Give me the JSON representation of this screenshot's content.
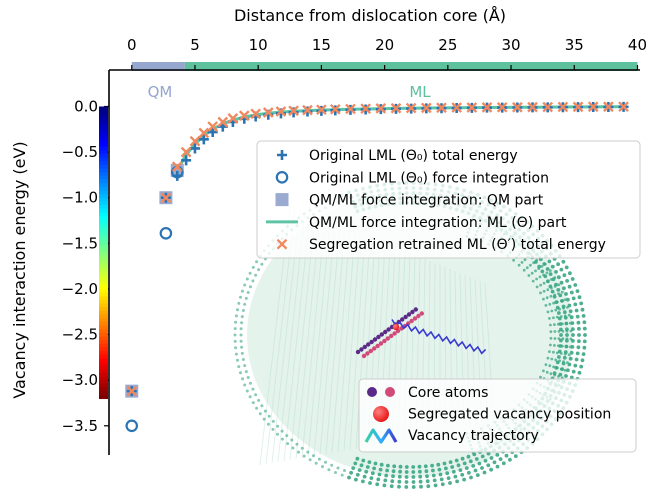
{
  "chart_data": {
    "type": "scatter",
    "title": "",
    "xlabel": "Distance from dislocation core (Å)",
    "ylabel": "Vacancy interaction energy (eV)",
    "xlim": [
      -1.8,
      40.2
    ],
    "ylim": [
      -3.82,
      0.4
    ],
    "x_ticks": [
      0,
      5,
      10,
      15,
      20,
      25,
      30,
      35,
      40
    ],
    "y_ticks": [
      0.0,
      -0.5,
      -1.0,
      -1.5,
      -2.0,
      -2.5,
      -3.0,
      -3.5
    ],
    "x_tick_labels": [
      "0",
      "5",
      "10",
      "15",
      "20",
      "25",
      "30",
      "35",
      "40"
    ],
    "y_tick_labels": [
      "0.0",
      "−0.5",
      "−1.0",
      "−1.5",
      "−2.0",
      "−2.5",
      "−3.0",
      "−3.5"
    ],
    "x_axis_position": "top",
    "grid": false,
    "legend_position": "right",
    "regions": [
      {
        "label": "QM",
        "x_range": [
          0,
          4.2
        ],
        "color": "#95a6cf"
      },
      {
        "label": "ML",
        "x_range": [
          4.2,
          40
        ],
        "color": "#5ec19d"
      }
    ],
    "colors": {
      "lml_total": "#2b74b4",
      "lml_force": "#2b74b4",
      "qm_part": "#9aaad1",
      "ml_part": "#5ec4a4",
      "retrained": "#f0895f"
    },
    "series": [
      {
        "name": "Original LML (Θ₀) total energy",
        "marker": "plus",
        "points": [
          [
            0,
            -3.12
          ],
          [
            2.7,
            -1.0
          ],
          [
            3.6,
            -0.76
          ],
          [
            4.3,
            -0.59
          ],
          [
            5.0,
            -0.46
          ],
          [
            5.7,
            -0.36
          ],
          [
            6.4,
            -0.28
          ],
          [
            7.2,
            -0.22
          ],
          [
            8.0,
            -0.17
          ],
          [
            8.9,
            -0.135
          ],
          [
            9.8,
            -0.11
          ],
          [
            10.8,
            -0.09
          ],
          [
            11.8,
            -0.075
          ],
          [
            12.8,
            -0.064
          ],
          [
            13.9,
            -0.055
          ],
          [
            15.0,
            -0.048
          ],
          [
            16.1,
            -0.042
          ],
          [
            17.3,
            -0.037
          ],
          [
            18.5,
            -0.033
          ],
          [
            19.7,
            -0.029
          ],
          [
            20.9,
            -0.026
          ],
          [
            22.1,
            -0.023
          ],
          [
            23.3,
            -0.021
          ],
          [
            24.5,
            -0.019
          ],
          [
            25.7,
            -0.017
          ],
          [
            26.9,
            -0.015
          ],
          [
            28.1,
            -0.013
          ],
          [
            29.3,
            -0.012
          ],
          [
            30.5,
            -0.011
          ],
          [
            31.7,
            -0.01
          ],
          [
            32.9,
            -0.009
          ],
          [
            34.1,
            -0.008
          ],
          [
            35.3,
            -0.007
          ],
          [
            36.5,
            -0.006
          ],
          [
            37.7,
            -0.005
          ],
          [
            38.9,
            -0.004
          ]
        ]
      },
      {
        "name": "Original LML (Θ₀) force integration",
        "marker": "circle",
        "points": [
          [
            0,
            -3.5
          ],
          [
            2.7,
            -1.39
          ],
          [
            3.6,
            -0.72
          ]
        ]
      },
      {
        "name": "QM/ML force integration: QM part",
        "marker": "square",
        "points": [
          [
            0,
            -3.12
          ],
          [
            2.7,
            -1.0
          ],
          [
            3.6,
            -0.7
          ]
        ]
      },
      {
        "name": "QM/ML force integration: ML (Θ) part",
        "marker": "line",
        "points": [
          [
            3.6,
            -0.7
          ],
          [
            4.3,
            -0.53
          ],
          [
            5.0,
            -0.41
          ],
          [
            5.7,
            -0.32
          ],
          [
            6.4,
            -0.25
          ],
          [
            7.2,
            -0.19
          ],
          [
            8.0,
            -0.15
          ],
          [
            8.9,
            -0.115
          ],
          [
            9.8,
            -0.092
          ],
          [
            10.8,
            -0.074
          ],
          [
            11.8,
            -0.062
          ],
          [
            12.8,
            -0.052
          ],
          [
            13.9,
            -0.045
          ],
          [
            15.0,
            -0.039
          ],
          [
            16.1,
            -0.034
          ],
          [
            17.3,
            -0.03
          ],
          [
            18.5,
            -0.027
          ],
          [
            19.7,
            -0.024
          ],
          [
            20.9,
            -0.021
          ],
          [
            22.1,
            -0.019
          ],
          [
            23.3,
            -0.017
          ],
          [
            24.5,
            -0.015
          ],
          [
            25.7,
            -0.013
          ],
          [
            26.9,
            -0.012
          ],
          [
            28.1,
            -0.011
          ],
          [
            29.3,
            -0.01
          ],
          [
            30.5,
            -0.009
          ],
          [
            31.7,
            -0.008
          ],
          [
            32.9,
            -0.007
          ],
          [
            34.1,
            -0.006
          ],
          [
            35.3,
            -0.005
          ],
          [
            36.5,
            -0.004
          ],
          [
            37.7,
            -0.003
          ],
          [
            38.9,
            -0.002
          ]
        ]
      },
      {
        "name": "Segregation retrained ML (Θ′) total energy",
        "marker": "x",
        "points": [
          [
            0,
            -3.12
          ],
          [
            2.7,
            -1.0
          ],
          [
            3.6,
            -0.66
          ],
          [
            4.3,
            -0.5
          ],
          [
            5.0,
            -0.38
          ],
          [
            5.7,
            -0.29
          ],
          [
            6.4,
            -0.22
          ],
          [
            7.2,
            -0.17
          ],
          [
            8.0,
            -0.13
          ],
          [
            8.9,
            -0.1
          ],
          [
            9.8,
            -0.08
          ],
          [
            10.8,
            -0.066
          ],
          [
            11.8,
            -0.055
          ],
          [
            12.8,
            -0.047
          ],
          [
            13.9,
            -0.04
          ],
          [
            15.0,
            -0.035
          ],
          [
            16.1,
            -0.031
          ],
          [
            17.3,
            -0.027
          ],
          [
            18.5,
            -0.024
          ],
          [
            19.7,
            -0.021
          ],
          [
            20.9,
            -0.019
          ],
          [
            22.1,
            -0.017
          ],
          [
            23.3,
            -0.015
          ],
          [
            24.5,
            -0.014
          ],
          [
            25.7,
            -0.012
          ],
          [
            26.9,
            -0.011
          ],
          [
            28.1,
            -0.01
          ],
          [
            29.3,
            -0.009
          ],
          [
            30.5,
            -0.008
          ],
          [
            31.7,
            -0.007
          ],
          [
            32.9,
            -0.006
          ],
          [
            34.1,
            -0.005
          ],
          [
            35.3,
            -0.004
          ],
          [
            36.5,
            -0.003
          ],
          [
            37.7,
            -0.003
          ],
          [
            38.9,
            -0.002
          ]
        ]
      }
    ],
    "colorbar": {
      "range": [
        -3.2,
        0.0
      ],
      "colormap": "jet",
      "position": "left"
    },
    "inset": {
      "legend": [
        {
          "label": "Core atoms",
          "icon": "purple-pink-dots"
        },
        {
          "label": "Segregated vacancy position",
          "icon": "red-sphere"
        },
        {
          "label": "Vacancy trajectory",
          "icon": "rainbow-zigzag"
        }
      ],
      "colors": {
        "atoms": "#3aa683",
        "atoms_light": "#cfe9df",
        "core_a": "#5b2a86",
        "core_b": "#d24a7a",
        "vacancy": "#e81a1a",
        "trajectory": "#3a3ad0"
      }
    }
  }
}
